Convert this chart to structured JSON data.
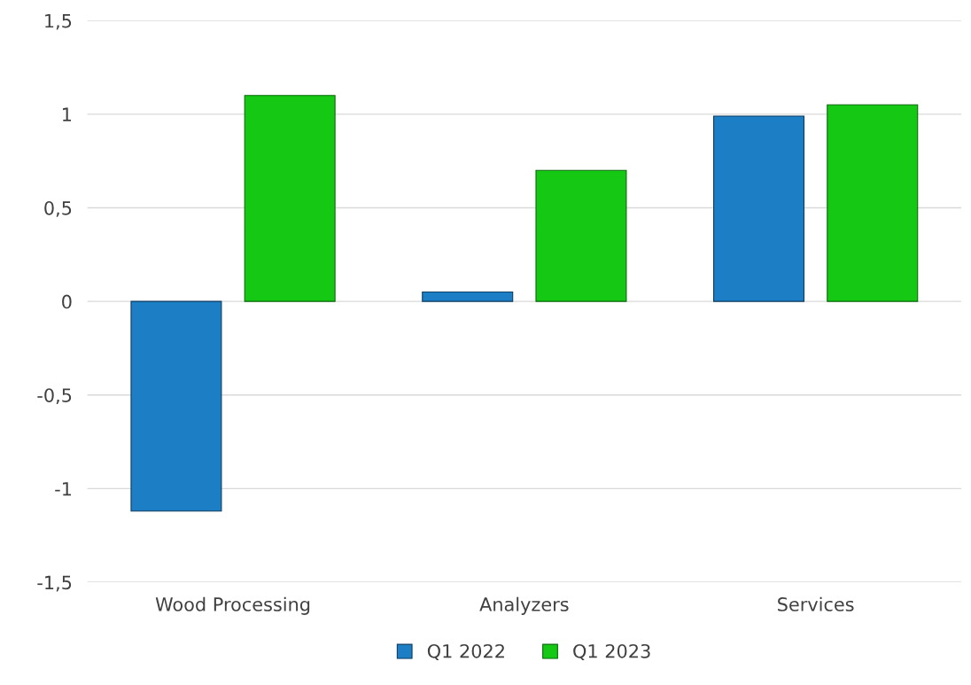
{
  "chart_data": {
    "type": "bar",
    "categories": [
      "Wood Processing",
      "Analyzers",
      "Services"
    ],
    "series": [
      {
        "name": "Q1 2022",
        "color": "#1c7ec4",
        "values": [
          -1.12,
          0.05,
          0.99
        ]
      },
      {
        "name": "Q1 2023",
        "color": "#14c814",
        "values": [
          1.1,
          0.7,
          1.05
        ]
      }
    ],
    "ylim": [
      -1.5,
      1.5
    ],
    "yticks": [
      {
        "value": -1.5,
        "label": "-1,5"
      },
      -1,
      {
        "value": -0.5,
        "label": "-0,5"
      },
      0,
      {
        "value": 0.5,
        "label": "0,5"
      },
      1,
      {
        "value": 1.5,
        "label": "1,5"
      }
    ],
    "grid": "y",
    "legend": "bottom"
  }
}
